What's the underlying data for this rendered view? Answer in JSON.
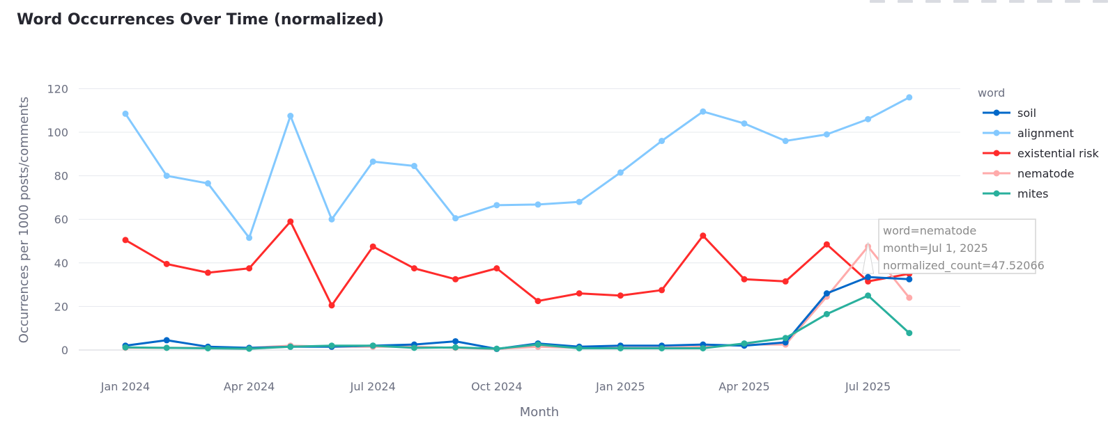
{
  "page": {
    "title": "Word Occurrences Over Time (normalized)"
  },
  "toolbar": {
    "icons": [
      "camera-icon",
      "zoom-icon",
      "pan-icon",
      "select-icon",
      "zoom-in-icon",
      "zoom-out-icon",
      "autoscale-icon",
      "reset-icon",
      "fullscreen-icon"
    ]
  },
  "chart_data": {
    "type": "line",
    "title": "Word Occurrences Over Time (normalized)",
    "xlabel": "Month",
    "ylabel": "Occurrences per 1000 posts/comments",
    "ylim": [
      -8,
      125
    ],
    "grid": true,
    "legend_title": "word",
    "legend_position": "right",
    "x": [
      "Jan 2024",
      "Feb 2024",
      "Mar 2024",
      "Apr 2024",
      "May 2024",
      "Jun 2024",
      "Jul 2024",
      "Aug 2024",
      "Sep 2024",
      "Oct 2024",
      "Nov 2024",
      "Dec 2024",
      "Jan 2025",
      "Feb 2025",
      "Mar 2025",
      "Apr 2025",
      "May 2025",
      "Jun 2025",
      "Jul 2025",
      "Aug 2025"
    ],
    "x_tick_labels": [
      {
        "index": 0,
        "label": "Jan 2024"
      },
      {
        "index": 3,
        "label": "Apr 2024"
      },
      {
        "index": 6,
        "label": "Jul 2024"
      },
      {
        "index": 9,
        "label": "Oct 2024"
      },
      {
        "index": 12,
        "label": "Jan 2025"
      },
      {
        "index": 15,
        "label": "Apr 2025"
      },
      {
        "index": 18,
        "label": "Jul 2025"
      }
    ],
    "y_ticks": [
      0,
      20,
      40,
      60,
      80,
      100,
      120
    ],
    "series": [
      {
        "name": "alignment",
        "color": "#83c9ff",
        "values": [
          108.5,
          80,
          76.5,
          51.5,
          107.5,
          60,
          86.5,
          84.5,
          60.5,
          66.5,
          66.8,
          68,
          81.5,
          96,
          109.5,
          104,
          96,
          99,
          106,
          116
        ]
      },
      {
        "name": "existential risk",
        "color": "#ff2b2b",
        "values": [
          50.5,
          39.5,
          35.5,
          37.5,
          59,
          20.5,
          47.5,
          37.5,
          32.5,
          37.5,
          22.5,
          26,
          25,
          27.5,
          52.5,
          32.5,
          31.5,
          48.5,
          31.5,
          35
        ]
      },
      {
        "name": "nematode",
        "color": "#ffabab",
        "values": [
          1,
          1,
          1,
          1,
          2,
          1.5,
          1.5,
          1.5,
          1,
          0.5,
          1.5,
          1,
          1,
          1,
          1.5,
          2.5,
          2.5,
          24.5,
          47.52066,
          24
        ]
      },
      {
        "name": "soil",
        "color": "#0068c9",
        "values": [
          2,
          4.5,
          1.5,
          1,
          1.5,
          1.5,
          2,
          2.5,
          4,
          0.5,
          3,
          1.5,
          2,
          2,
          2.5,
          2,
          3.5,
          26,
          33.5,
          32.5
        ]
      },
      {
        "name": "mites",
        "color": "#29b09d",
        "values": [
          1.2,
          1,
          0.8,
          0.6,
          1.5,
          2,
          2,
          1,
          1.2,
          0.6,
          2.5,
          0.8,
          0.8,
          0.8,
          0.8,
          3,
          5.5,
          16.5,
          25,
          7.8
        ]
      }
    ],
    "legend_order": [
      "soil",
      "alignment",
      "existential risk",
      "nematode",
      "mites"
    ],
    "tooltip": {
      "series": "nematode",
      "index": 18,
      "lines": [
        "word=nematode",
        "month=Jul 1, 2025",
        "normalized_count=47.52066"
      ]
    }
  }
}
